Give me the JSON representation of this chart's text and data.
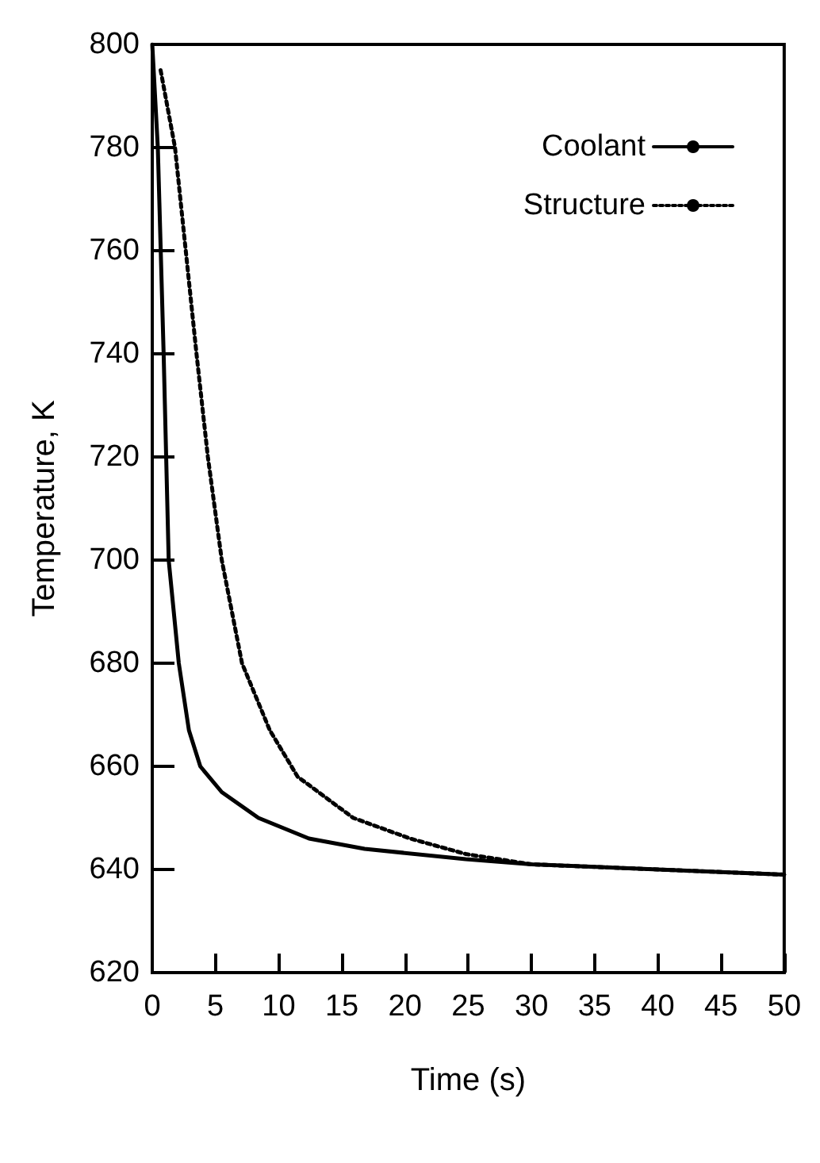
{
  "chart_data": {
    "type": "line",
    "xlabel": "Time (s)",
    "ylabel": "Temperature, K",
    "xlim": [
      0,
      50
    ],
    "xticks": [
      0,
      5,
      10,
      15,
      20,
      25,
      30,
      35,
      40,
      45,
      50
    ],
    "ylim": [
      620,
      800
    ],
    "yticks": [
      620,
      640,
      660,
      680,
      700,
      720,
      740,
      760,
      780,
      800
    ],
    "grid": false,
    "legend": "top right",
    "marker": "none",
    "series": [
      {
        "name": "Coolant",
        "color": "#000000",
        "line_style": "solid",
        "x": [
          0,
          0.44,
          0.9,
          1.3,
          2.1,
          2.9,
          3.8,
          5.5,
          8.4,
          12.4,
          16.8,
          24.8,
          30,
          40,
          50
        ],
        "values": [
          800,
          780,
          740,
          700,
          680,
          667,
          660,
          655,
          650,
          646,
          644,
          642,
          641,
          640,
          639
        ]
      },
      {
        "name": "Structure",
        "color": "#000000",
        "line_style": "dotted",
        "x": [
          0.66,
          1.8,
          2.65,
          3.5,
          4.4,
          5.5,
          7.1,
          9.3,
          11.5,
          15.9,
          20.4,
          24.8,
          30,
          40,
          50
        ],
        "values": [
          795,
          780,
          760,
          740,
          720,
          700,
          680,
          667,
          658,
          650,
          646,
          643,
          641,
          640,
          639
        ]
      }
    ]
  }
}
